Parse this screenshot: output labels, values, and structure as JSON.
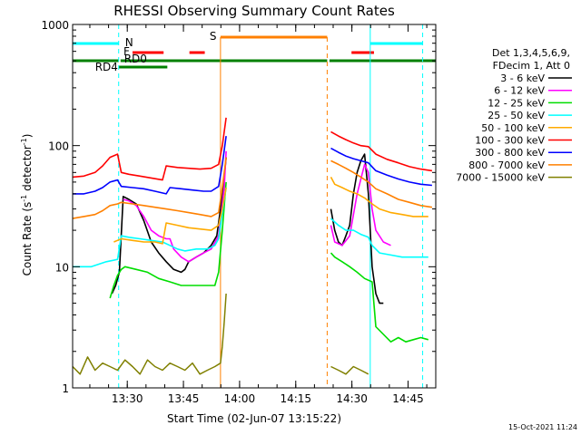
{
  "chart_data": {
    "type": "line",
    "title": "RHESSI Observing Summary Count Rates",
    "xlabel": "Start Time (02-Jun-07 13:15:22)",
    "ylabel_main": "Count Rate (s",
    "ylabel_sup1": "-1",
    "ylabel_mid": " detector",
    "ylabel_sup2": "-1",
    "ylabel_end": ")",
    "y_scale": "log",
    "ylim": [
      1,
      1000
    ],
    "xlim_minutes": [
      0,
      97
    ],
    "x_ticks": [
      {
        "minute": 14.6,
        "label": "13:30"
      },
      {
        "minute": 29.6,
        "label": "13:45"
      },
      {
        "minute": 44.6,
        "label": "14:00"
      },
      {
        "minute": 59.6,
        "label": "14:15"
      },
      {
        "minute": 74.6,
        "label": "14:30"
      },
      {
        "minute": 89.6,
        "label": "14:45"
      }
    ],
    "y_ticks": [
      {
        "value": 1,
        "label": "1"
      },
      {
        "value": 10,
        "label": "10"
      },
      {
        "value": 100,
        "label": "100"
      },
      {
        "value": 1000,
        "label": "1000"
      }
    ],
    "legend_header": [
      "Det 1,3,4,5,6,9,",
      "FDecim 1, Att 0"
    ],
    "legend_placement": "right",
    "timestamp": "15-Oct-2021 11:24",
    "flag_labels": {
      "N": "N",
      "F": "F",
      "S": "S",
      "RD0": "RD0",
      "RD4": "RD4"
    },
    "flags": {
      "night": [
        [
          0,
          12.3
        ],
        [
          79.5,
          93.5
        ]
      ],
      "flare": [
        [
          16.0,
          24.3
        ],
        [
          31.2,
          35.3
        ],
        [
          74.5,
          80.5
        ]
      ],
      "saa": [
        [
          39.5,
          68.0
        ]
      ],
      "decimation": [
        [
          0,
          97
        ]
      ],
      "decimation_gap": [
        [
          12.3,
          12.8
        ],
        [
          68.0,
          68.6
        ]
      ],
      "rd4": [
        [
          12.3,
          25.3
        ]
      ]
    },
    "vlines": {
      "night_solid": [
        0,
        79.5
      ],
      "night_dashed": [
        12.3,
        93.5
      ],
      "saa_solid": [
        39.5
      ],
      "saa_dashed": [
        68.0
      ]
    },
    "data_gap_minutes": [
      41.2,
      67.8
    ],
    "series": [
      {
        "name": "3 - 6 keV",
        "color": "#000000",
        "points": [
          [
            0,
            null
          ],
          [
            9.5,
            null
          ],
          [
            10.5,
            6
          ],
          [
            11.5,
            7
          ],
          [
            12.5,
            9
          ],
          [
            13.5,
            38
          ],
          [
            15,
            36
          ],
          [
            17,
            33
          ],
          [
            19,
            24
          ],
          [
            21,
            16
          ],
          [
            23,
            13
          ],
          [
            25,
            11
          ],
          [
            27,
            9.5
          ],
          [
            29,
            9
          ],
          [
            30,
            9.5
          ],
          [
            31,
            11
          ],
          [
            33,
            12
          ],
          [
            35,
            13
          ],
          [
            37,
            15
          ],
          [
            38.5,
            18
          ],
          [
            39.5,
            30
          ],
          [
            40.5,
            55
          ],
          [
            41,
            80
          ],
          [
            68,
            null
          ],
          [
            69,
            30
          ],
          [
            70,
            20
          ],
          [
            71,
            16
          ],
          [
            72,
            15
          ],
          [
            73,
            18
          ],
          [
            74,
            22
          ],
          [
            75,
            40
          ],
          [
            76,
            60
          ],
          [
            77,
            75
          ],
          [
            78,
            85
          ],
          [
            79,
            40
          ],
          [
            80,
            10
          ],
          [
            81,
            6
          ],
          [
            82,
            5
          ],
          [
            83,
            5
          ]
        ]
      },
      {
        "name": "6 - 12 keV",
        "color": "#ff00ff",
        "points": [
          [
            0,
            null
          ],
          [
            12.5,
            null
          ],
          [
            13.5,
            36
          ],
          [
            15,
            35
          ],
          [
            17,
            32
          ],
          [
            19,
            26
          ],
          [
            21,
            20
          ],
          [
            23,
            18
          ],
          [
            25,
            17
          ],
          [
            26,
            17
          ],
          [
            27,
            14
          ],
          [
            29,
            12
          ],
          [
            31,
            11
          ],
          [
            33,
            12
          ],
          [
            35,
            13
          ],
          [
            37,
            14
          ],
          [
            39,
            18
          ],
          [
            40.5,
            45
          ],
          [
            41,
            90
          ],
          [
            68,
            null
          ],
          [
            69,
            22
          ],
          [
            70,
            16
          ],
          [
            72,
            15
          ],
          [
            74,
            18
          ],
          [
            76,
            40
          ],
          [
            78,
            70
          ],
          [
            79,
            60
          ],
          [
            80,
            30
          ],
          [
            81,
            20
          ],
          [
            83,
            16
          ],
          [
            85,
            15
          ]
        ]
      },
      {
        "name": "12 - 25 keV",
        "color": "#00dd00",
        "points": [
          [
            0,
            null
          ],
          [
            9.3,
            null
          ],
          [
            10,
            5.5
          ],
          [
            11,
            7
          ],
          [
            12,
            8.5
          ],
          [
            13,
            9.5
          ],
          [
            14,
            10
          ],
          [
            17,
            9.5
          ],
          [
            20,
            9
          ],
          [
            23,
            8
          ],
          [
            26,
            7.5
          ],
          [
            29,
            7
          ],
          [
            31,
            7
          ],
          [
            33,
            7
          ],
          [
            36,
            7
          ],
          [
            38,
            7
          ],
          [
            39,
            9
          ],
          [
            40,
            20
          ],
          [
            41,
            50
          ],
          [
            68,
            null
          ],
          [
            69,
            13
          ],
          [
            70,
            12
          ],
          [
            72,
            11
          ],
          [
            74,
            10
          ],
          [
            76,
            9
          ],
          [
            78,
            8
          ],
          [
            80,
            7.5
          ],
          [
            81,
            3.2
          ],
          [
            85,
            2.4
          ],
          [
            87,
            2.6
          ],
          [
            89,
            2.4
          ],
          [
            91,
            2.5
          ],
          [
            93,
            2.6
          ],
          [
            95,
            2.5
          ]
        ]
      },
      {
        "name": "25 - 50 keV",
        "color": "#00ffff",
        "points": [
          [
            0,
            10
          ],
          [
            5,
            10
          ],
          [
            9,
            11
          ],
          [
            12,
            11.5
          ],
          [
            13,
            18
          ],
          [
            15,
            17.5
          ],
          [
            18,
            17
          ],
          [
            21,
            16.5
          ],
          [
            24,
            16
          ],
          [
            26,
            15
          ],
          [
            28,
            14
          ],
          [
            30,
            13.5
          ],
          [
            33,
            14
          ],
          [
            36,
            14
          ],
          [
            38,
            15
          ],
          [
            39,
            17
          ],
          [
            40,
            28
          ],
          [
            41,
            45
          ],
          [
            68,
            null
          ],
          [
            69,
            25
          ],
          [
            71,
            22
          ],
          [
            73,
            20
          ],
          [
            75,
            20
          ],
          [
            77,
            18.5
          ],
          [
            79,
            17.5
          ],
          [
            80,
            15
          ],
          [
            82,
            13
          ],
          [
            85,
            12.5
          ],
          [
            88,
            12
          ],
          [
            91,
            12
          ],
          [
            95,
            12
          ]
        ]
      },
      {
        "name": "50 - 100 keV",
        "color": "#ffaa00",
        "points": [
          [
            0,
            null
          ],
          [
            10.5,
            null
          ],
          [
            11,
            16
          ],
          [
            13,
            17
          ],
          [
            16,
            16.5
          ],
          [
            19,
            16
          ],
          [
            22,
            16
          ],
          [
            24,
            15.5
          ],
          [
            25,
            23
          ],
          [
            28,
            22
          ],
          [
            31,
            21
          ],
          [
            34,
            20.5
          ],
          [
            37,
            20
          ],
          [
            39,
            22
          ],
          [
            40,
            30
          ],
          [
            41,
            45
          ],
          [
            68,
            null
          ],
          [
            69,
            55
          ],
          [
            70,
            48
          ],
          [
            72,
            45
          ],
          [
            74,
            42
          ],
          [
            76,
            40
          ],
          [
            78,
            37
          ],
          [
            80,
            33
          ],
          [
            82,
            30
          ],
          [
            85,
            28
          ],
          [
            88,
            27
          ],
          [
            91,
            26
          ],
          [
            95,
            26
          ]
        ]
      },
      {
        "name": "100 - 300 keV",
        "color": "#ff0000",
        "points": [
          [
            0,
            55
          ],
          [
            3,
            56
          ],
          [
            6,
            60
          ],
          [
            8,
            68
          ],
          [
            10,
            80
          ],
          [
            12,
            85
          ],
          [
            13,
            60
          ],
          [
            15,
            58
          ],
          [
            18,
            56
          ],
          [
            21,
            54
          ],
          [
            24,
            52
          ],
          [
            25,
            68
          ],
          [
            28,
            66
          ],
          [
            31,
            65
          ],
          [
            34,
            64
          ],
          [
            37,
            65
          ],
          [
            39,
            70
          ],
          [
            40,
            100
          ],
          [
            41,
            170
          ],
          [
            68,
            null
          ],
          [
            69,
            130
          ],
          [
            71,
            120
          ],
          [
            73,
            112
          ],
          [
            75,
            105
          ],
          [
            77,
            100
          ],
          [
            79,
            98
          ],
          [
            81,
            85
          ],
          [
            84,
            77
          ],
          [
            87,
            72
          ],
          [
            90,
            67
          ],
          [
            93,
            64
          ],
          [
            96,
            62
          ]
        ]
      },
      {
        "name": "300 - 800 keV",
        "color": "#0000ff",
        "points": [
          [
            0,
            40
          ],
          [
            3,
            40
          ],
          [
            6,
            42
          ],
          [
            8,
            45
          ],
          [
            10,
            50
          ],
          [
            12,
            52
          ],
          [
            13,
            46
          ],
          [
            16,
            45
          ],
          [
            19,
            44
          ],
          [
            22,
            42
          ],
          [
            25,
            40
          ],
          [
            26,
            45
          ],
          [
            29,
            44
          ],
          [
            32,
            43
          ],
          [
            35,
            42
          ],
          [
            37,
            42
          ],
          [
            39,
            46
          ],
          [
            40,
            70
          ],
          [
            41,
            120
          ],
          [
            68,
            null
          ],
          [
            69,
            95
          ],
          [
            71,
            88
          ],
          [
            73,
            82
          ],
          [
            75,
            78
          ],
          [
            77,
            75
          ],
          [
            79,
            72
          ],
          [
            81,
            62
          ],
          [
            84,
            57
          ],
          [
            87,
            53
          ],
          [
            90,
            50
          ],
          [
            93,
            48
          ],
          [
            96,
            47
          ]
        ]
      },
      {
        "name": "800 - 7000 keV",
        "color": "#ff8000",
        "points": [
          [
            0,
            25
          ],
          [
            3,
            26
          ],
          [
            6,
            27
          ],
          [
            8,
            29
          ],
          [
            10,
            32
          ],
          [
            12,
            33
          ],
          [
            13,
            34
          ],
          [
            16,
            33
          ],
          [
            19,
            32
          ],
          [
            22,
            31
          ],
          [
            25,
            30
          ],
          [
            28,
            29
          ],
          [
            31,
            28
          ],
          [
            34,
            27
          ],
          [
            37,
            26
          ],
          [
            39,
            28
          ],
          [
            40,
            45
          ],
          [
            41,
            80
          ],
          [
            68,
            null
          ],
          [
            69,
            75
          ],
          [
            71,
            70
          ],
          [
            73,
            65
          ],
          [
            75,
            60
          ],
          [
            77,
            55
          ],
          [
            79,
            50
          ],
          [
            81,
            44
          ],
          [
            84,
            40
          ],
          [
            87,
            36
          ],
          [
            90,
            34
          ],
          [
            93,
            32
          ],
          [
            96,
            31
          ]
        ]
      },
      {
        "name": "7000 - 15000 keV",
        "color": "#808000",
        "points": [
          [
            0,
            1.5
          ],
          [
            2,
            1.3
          ],
          [
            4,
            1.8
          ],
          [
            6,
            1.4
          ],
          [
            8,
            1.6
          ],
          [
            10,
            1.5
          ],
          [
            12,
            1.4
          ],
          [
            14,
            1.7
          ],
          [
            16,
            1.5
          ],
          [
            18,
            1.3
          ],
          [
            20,
            1.7
          ],
          [
            22,
            1.5
          ],
          [
            24,
            1.4
          ],
          [
            26,
            1.6
          ],
          [
            28,
            1.5
          ],
          [
            30,
            1.4
          ],
          [
            32,
            1.6
          ],
          [
            34,
            1.3
          ],
          [
            36,
            1.4
          ],
          [
            38,
            1.5
          ],
          [
            39.5,
            1.6
          ],
          [
            40,
            2.2
          ],
          [
            40.5,
            3.5
          ],
          [
            41,
            6
          ],
          [
            68,
            null
          ],
          [
            69,
            1.5
          ],
          [
            71,
            1.4
          ],
          [
            73,
            1.3
          ],
          [
            75,
            1.5
          ],
          [
            77,
            1.4
          ],
          [
            79,
            1.3
          ]
        ]
      }
    ]
  }
}
